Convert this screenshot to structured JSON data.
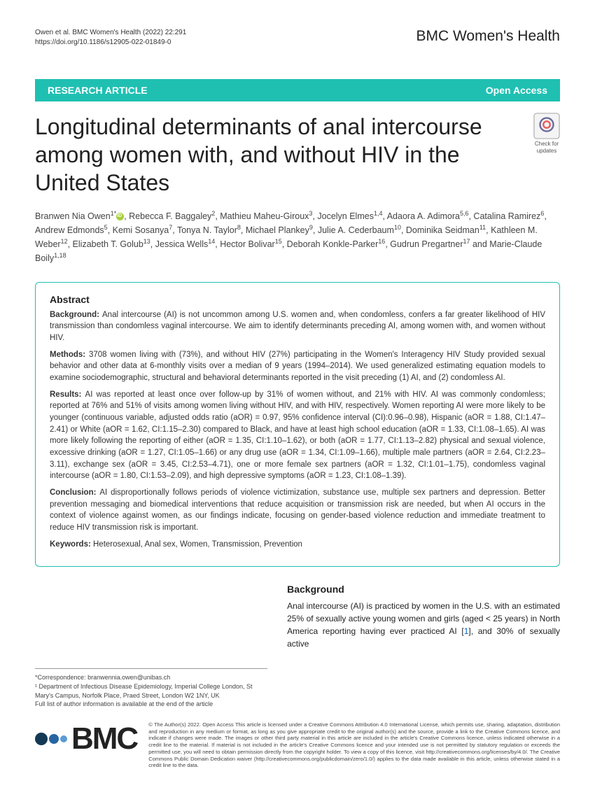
{
  "header": {
    "citation_line1": "Owen et al. BMC Women's Health       (2022) 22:291",
    "citation_line2": "https://doi.org/10.1186/s12905-022-01849-0",
    "journal_brand": "BMC Women's Health"
  },
  "banner": {
    "article_type": "RESEARCH ARTICLE",
    "access": "Open Access",
    "bg_color": "#1fc0b2"
  },
  "title": "Longitudinal determinants of anal intercourse among women with, and without HIV in the United States",
  "update_badge": {
    "line1": "Check for",
    "line2": "updates"
  },
  "authors_html": "Branwen Nia Owen<sup>1*</sup> , Rebecca F. Baggaley<sup>2</sup>, Mathieu Maheu-Giroux<sup>3</sup>, Jocelyn Elmes<sup>1,4</sup>, Adaora A. Adimora<sup>5,6</sup>, Catalina Ramirez<sup>6</sup>, Andrew Edmonds<sup>5</sup>, Kemi Sosanya<sup>7</sup>, Tonya N. Taylor<sup>8</sup>, Michael Plankey<sup>9</sup>, Julie A. Cederbaum<sup>10</sup>, Dominika Seidman<sup>11</sup>, Kathleen M. Weber<sup>12</sup>, Elizabeth T. Golub<sup>13</sup>, Jessica Wells<sup>14</sup>, Hector Bolivar<sup>15</sup>, Deborah Konkle-Parker<sup>16</sup>, Gudrun Pregartner<sup>17</sup> and Marie-Claude Boily<sup>1,18</sup>",
  "abstract": {
    "heading": "Abstract",
    "background": "Anal intercourse (AI) is not uncommon among U.S. women and, when condomless, confers a far greater likelihood of HIV transmission than condomless vaginal intercourse. We aim to identify determinants preceding AI, among women with, and women without HIV.",
    "methods": "3708 women living with (73%), and without HIV (27%) participating in the Women's Interagency HIV Study provided sexual behavior and other data at 6-monthly visits over a median of 9 years (1994–2014). We used generalized estimating equation models to examine sociodemographic, structural and behavioral determinants reported in the visit preceding (1) AI, and (2) condomless AI.",
    "results": "AI was reported at least once over follow-up by 31% of women without, and 21% with HIV. AI was commonly condomless; reported at 76% and 51% of visits among women living without HIV, and with HIV, respectively. Women reporting AI were more likely to be younger (continuous variable, adjusted odds ratio (aOR) = 0.97, 95% confidence interval (CI):0.96–0.98), Hispanic (aOR = 1.88, CI:1.47–2.41) or White (aOR = 1.62, CI:1.15–2.30) compared to Black, and have at least high school education (aOR = 1.33, CI:1.08–1.65). AI was more likely following the reporting of either (aOR = 1.35, CI:1.10–1.62), or both (aOR = 1.77, CI:1.13–2.82) physical and sexual violence, excessive drinking (aOR = 1.27, CI:1.05–1.66) or any drug use (aOR = 1.34, CI:1.09–1.66), multiple male partners (aOR = 2.64, CI:2.23–3.11), exchange sex (aOR = 3.45, CI:2.53–4.71), one or more female sex partners (aOR = 1.32, CI:1.01–1.75), condomless vaginal intercourse (aOR = 1.80, CI:1.53–2.09), and high depressive symptoms (aOR = 1.23, CI:1.08–1.39).",
    "conclusion": "AI disproportionally follows periods of violence victimization, substance use, multiple sex partners and depression. Better prevention messaging and biomedical interventions that reduce acquisition or transmission risk are needed, but when AI occurs in the context of violence against women, as our findings indicate, focusing on gender-based violence reduction and immediate treatment to reduce HIV transmission risk is important.",
    "keywords_label": "Keywords:",
    "keywords": "Heterosexual, Anal sex, Women, Transmission, Prevention"
  },
  "body": {
    "section_heading": "Background",
    "paragraph": "Anal intercourse (AI) is practiced by women in the U.S. with an estimated 25% of sexually active young women and girls (aged < 25 years) in North America reporting having ever practiced AI [1], and 30% of sexually active",
    "ref_num": "1"
  },
  "correspondence": {
    "email_label": "*Correspondence:",
    "email": "branwennia.owen@unibas.ch",
    "affiliation": "¹ Department of Infectious Disease Epidemiology, Imperial College London, St Mary's Campus, Norfolk Place, Praed Street, London W2 1NY, UK",
    "note": "Full list of author information is available at the end of the article"
  },
  "footer": {
    "logo_text": "BMC",
    "license": "© The Author(s) 2022. Open Access This article is licensed under a Creative Commons Attribution 4.0 International License, which permits use, sharing, adaptation, distribution and reproduction in any medium or format, as long as you give appropriate credit to the original author(s) and the source, provide a link to the Creative Commons licence, and indicate if changes were made. The images or other third party material in this article are included in the article's Creative Commons licence, unless indicated otherwise in a credit line to the material. If material is not included in the article's Creative Commons licence and your intended use is not permitted by statutory regulation or exceeds the permitted use, you will need to obtain permission directly from the copyright holder. To view a copy of this licence, visit http://creativecommons.org/licenses/by/4.0/. The Creative Commons Public Domain Dedication waiver (http://creativecommons.org/publicdomain/zero/1.0/) applies to the data made available in this article, unless otherwise stated in a credit line to the data."
  },
  "colors": {
    "teal": "#1fc0b2",
    "link": "#0066cc",
    "orcid": "#a6ce39"
  }
}
